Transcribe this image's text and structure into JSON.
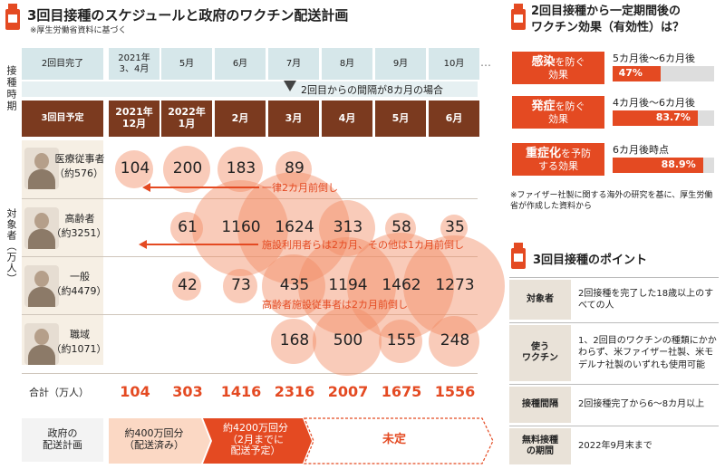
{
  "left": {
    "title": "3回目接種のスケジュールと政府のワクチン配送計画",
    "source_note": "※厚生労働省資料に基づく",
    "side_label_schedule": "接種時期",
    "side_label_people": "対象者（万人）",
    "row1_label": "2回目完了",
    "row1_months": [
      "2021年\n3、4月",
      "5月",
      "6月",
      "7月",
      "8月",
      "9月",
      "10月"
    ],
    "ellipsis": "…",
    "interval_note": "2回目からの間隔が8カ月の場合",
    "row3_label": "3回目予定",
    "row3_months": [
      "2021年\n12月",
      "2022年\n1月",
      "2月",
      "3月",
      "4月",
      "5月",
      "6月"
    ],
    "groups": [
      {
        "name": "医療従事者",
        "count": "（約576）",
        "values": [
          "104",
          "200",
          "183",
          "89",
          "",
          "",
          ""
        ]
      },
      {
        "name": "高齢者",
        "count": "（約3251）",
        "values": [
          "",
          "61",
          "1160",
          "1624",
          "313",
          "58",
          "35"
        ]
      },
      {
        "name": "一般",
        "count": "（約4479）",
        "values": [
          "",
          "42",
          "73",
          "435",
          "1194",
          "1462",
          "1273"
        ]
      },
      {
        "name": "職域",
        "count": "（約1071）",
        "values": [
          "",
          "",
          "",
          "168",
          "500",
          "155",
          "248"
        ]
      }
    ],
    "arrow_notes": [
      "一律2カ月前倒し",
      "施設利用者らは2カ月、その他は1カ月前倒し",
      "高齢者施設従事者は2カ月前倒し"
    ],
    "total_label": "合計（万人）",
    "totals": [
      "104",
      "303",
      "1416",
      "2316",
      "2007",
      "1675",
      "1556"
    ],
    "plan_label": "政府の\n配送計画",
    "plan_items": [
      "約400万回分\n（配送済み）",
      "約4200万回分\n（2月までに\n配送予定）",
      "未定"
    ],
    "accent_color": "#e44a22",
    "brown_color": "#7b3a1f"
  },
  "effect": {
    "title": "2回目接種から一定期間後の\nワクチン効果（有効性）は？",
    "items": [
      {
        "box_main": "感染",
        "box_rest": "を防ぐ",
        "box_line2": "効果",
        "period": "5カ月後〜6カ月後",
        "value": "47%",
        "pct": 47
      },
      {
        "box_main": "発症",
        "box_rest": "を防ぐ",
        "box_line2": "効果",
        "period": "4カ月後〜6カ月後",
        "value": "83.7%",
        "pct": 83.7
      },
      {
        "box_main": "重症化",
        "box_rest": "を予防",
        "box_line2": "する効果",
        "period": "6カ月後時点",
        "value": "88.9%",
        "pct": 88.9
      }
    ],
    "note": "※ファイザー社製に関する海外の研究を基に、厚生労働省が作成した資料から"
  },
  "points": {
    "title": "3回目接種のポイント",
    "rows": [
      {
        "label": "対象者",
        "value": "2回接種を完了した18歳以上のすべての人"
      },
      {
        "label": "使う\nワクチン",
        "value": "1、2回目のワクチンの種類にかかわらず、米ファイザー社製、米モデルナ社製のいずれも使用可能"
      },
      {
        "label": "接種間隔",
        "value": "2回接種完了から6〜8カ月以上"
      },
      {
        "label": "無料接種\nの期間",
        "value": "2022年9月末まで"
      }
    ]
  }
}
